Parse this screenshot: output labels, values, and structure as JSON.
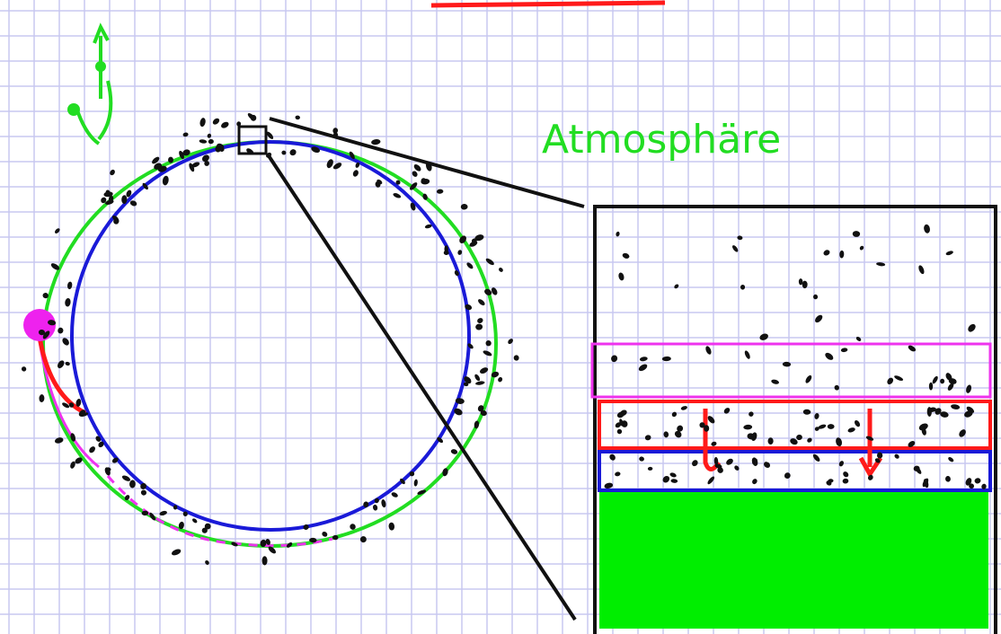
{
  "label": "Atmosphäre"
}
